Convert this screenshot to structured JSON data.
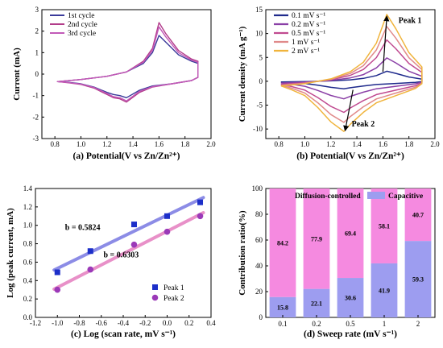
{
  "chart_data": [
    {
      "type": "line",
      "panel": "a",
      "caption": "(a) Potential(V vs Zn/Zn²⁺)",
      "xlabel": "",
      "ylabel": "Current (mA)",
      "xlim": [
        0.7,
        2.0
      ],
      "ylim": [
        -3,
        3
      ],
      "xticks": [
        "0.8",
        "1.0",
        "1.2",
        "1.4",
        "1.6",
        "1.8",
        "2.0"
      ],
      "yticks": [
        "-3",
        "-2",
        "-1",
        "0",
        "1",
        "2",
        "3"
      ],
      "legend_position": "top-left",
      "series": [
        {
          "name": "1st cycle",
          "color": "#3a3a9a",
          "x": [
            0.82,
            1.0,
            1.2,
            1.35,
            1.48,
            1.55,
            1.6,
            1.65,
            1.75,
            1.85,
            1.9,
            1.9,
            1.85,
            1.7,
            1.55,
            1.45,
            1.35,
            1.3,
            1.25,
            1.2,
            1.1,
            1.0,
            0.9,
            0.82
          ],
          "y": [
            -0.35,
            -0.25,
            -0.1,
            0.1,
            0.5,
            1.0,
            1.8,
            1.5,
            0.9,
            0.6,
            0.5,
            -0.15,
            -0.3,
            -0.45,
            -0.55,
            -0.75,
            -1.1,
            -1.0,
            -0.95,
            -0.85,
            -0.6,
            -0.45,
            -0.38,
            -0.35
          ]
        },
        {
          "name": "2nd cycle",
          "color": "#b23c8a",
          "x": [
            0.82,
            1.0,
            1.2,
            1.35,
            1.48,
            1.55,
            1.6,
            1.65,
            1.75,
            1.85,
            1.9,
            1.9,
            1.85,
            1.7,
            1.55,
            1.45,
            1.35,
            1.3,
            1.25,
            1.2,
            1.1,
            1.0,
            0.9,
            0.82
          ],
          "y": [
            -0.35,
            -0.25,
            -0.1,
            0.1,
            0.6,
            1.2,
            2.4,
            1.9,
            1.1,
            0.7,
            0.6,
            -0.15,
            -0.3,
            -0.45,
            -0.6,
            -0.85,
            -1.3,
            -1.15,
            -1.1,
            -0.95,
            -0.65,
            -0.48,
            -0.4,
            -0.35
          ]
        },
        {
          "name": "3rd cycle",
          "color": "#c25ab8",
          "x": [
            0.82,
            1.0,
            1.2,
            1.35,
            1.48,
            1.55,
            1.6,
            1.65,
            1.75,
            1.85,
            1.9,
            1.9,
            1.85,
            1.7,
            1.55,
            1.45,
            1.35,
            1.3,
            1.25,
            1.2,
            1.1,
            1.0,
            0.9,
            0.82
          ],
          "y": [
            -0.35,
            -0.25,
            -0.1,
            0.1,
            0.55,
            1.1,
            2.2,
            1.75,
            1.0,
            0.65,
            0.55,
            -0.15,
            -0.3,
            -0.45,
            -0.58,
            -0.8,
            -1.25,
            -1.1,
            -1.05,
            -0.9,
            -0.62,
            -0.46,
            -0.39,
            -0.35
          ]
        }
      ]
    },
    {
      "type": "line",
      "panel": "b",
      "caption": "(b) Potential(V vs Zn/Zn²⁺)",
      "xlabel": "",
      "ylabel": "Current density (mA g⁻¹)",
      "xlim": [
        0.7,
        2.0
      ],
      "ylim": [
        -12,
        15
      ],
      "xticks": [
        "0.8",
        "1.0",
        "1.2",
        "1.4",
        "1.6",
        "1.8",
        "2.0"
      ],
      "yticks": [
        "-10",
        "-5",
        "0",
        "5",
        "10",
        "15"
      ],
      "legend_position": "top-left",
      "annotations": [
        "Peak 1",
        "Peak 2"
      ],
      "series": [
        {
          "name": "0.1 mV s⁻¹",
          "color": "#1f2a8c",
          "scale": 0.15
        },
        {
          "name": "0.2 mV s⁻¹",
          "color": "#8a3fa6",
          "scale": 0.35
        },
        {
          "name": "0.5 mV s⁻¹",
          "color": "#c04a90",
          "scale": 0.62
        },
        {
          "name": "1 mV s⁻¹",
          "color": "#e08a8a",
          "scale": 0.82
        },
        {
          "name": "2 mV s⁻¹",
          "color": "#f0b43c",
          "scale": 1.0
        }
      ],
      "shape_x": [
        0.82,
        1.0,
        1.2,
        1.35,
        1.45,
        1.55,
        1.63,
        1.7,
        1.8,
        1.9,
        1.9,
        1.85,
        1.7,
        1.55,
        1.45,
        1.35,
        1.3,
        1.2,
        1.1,
        1.0,
        0.9,
        0.82
      ],
      "shape_y": [
        -1.0,
        -0.5,
        0.5,
        2.0,
        4.0,
        8.0,
        14.0,
        11.0,
        6.0,
        3.0,
        -0.5,
        -1.5,
        -3.0,
        -4.5,
        -6.5,
        -9.0,
        -10.5,
        -8.5,
        -5.5,
        -3.0,
        -1.8,
        -1.0
      ]
    },
    {
      "type": "scatter",
      "panel": "c",
      "caption": "(c) Log (scan rate, mV s⁻¹)",
      "xlabel": "",
      "ylabel": "Log (peak current, mA)",
      "xlim": [
        -1.2,
        0.4
      ],
      "ylim": [
        0.0,
        1.4
      ],
      "xticks": [
        "-1.2",
        "-1.0",
        "-0.8",
        "-0.6",
        "-0.4",
        "-0.2",
        "0.0",
        "0.2",
        "0.4"
      ],
      "yticks": [
        "0.0",
        "0.2",
        "0.4",
        "0.6",
        "0.8",
        "1.0",
        "1.2",
        "1.4"
      ],
      "legend_position": "bottom-right",
      "annotations": [
        "b = 0.5824",
        "b = 0.6303"
      ],
      "series": [
        {
          "name": "Peak 1",
          "color": "#1c2fc9",
          "marker": "square",
          "line_color": "#8c8ce6",
          "x": [
            -1.0,
            -0.699,
            -0.301,
            0.0,
            0.301
          ],
          "y": [
            0.49,
            0.72,
            1.01,
            1.1,
            1.25
          ]
        },
        {
          "name": "Peak 2",
          "color": "#9b39b8",
          "marker": "circle",
          "line_color": "#e890c8",
          "x": [
            -1.0,
            -0.699,
            -0.301,
            0.0,
            0.301
          ],
          "y": [
            0.3,
            0.52,
            0.79,
            0.93,
            1.1
          ]
        }
      ]
    },
    {
      "type": "bar",
      "stacked": true,
      "panel": "d",
      "caption": "(d) Sweep rate (mV s⁻¹)",
      "xlabel": "",
      "ylabel": "Contribution ratio(%)",
      "ylim": [
        0,
        100
      ],
      "yticks": [
        "0",
        "20",
        "40",
        "60",
        "80",
        "100"
      ],
      "categories": [
        "0.1",
        "0.2",
        "0.5",
        "1",
        "2"
      ],
      "legend_position": "top",
      "series": [
        {
          "name": "Capacitive",
          "color": "#9d9df0",
          "values": [
            15.8,
            22.1,
            30.6,
            41.9,
            59.3
          ],
          "labels": [
            "15.8",
            "22.1",
            "30.6",
            "41.9",
            "59.3"
          ]
        },
        {
          "name": "Diffusion-controlled",
          "color": "#f58ae0",
          "values": [
            84.2,
            77.9,
            69.4,
            58.1,
            40.7
          ],
          "labels": [
            "84.2",
            "77.9",
            "69.4",
            "58.1",
            "40.7"
          ]
        }
      ]
    }
  ]
}
